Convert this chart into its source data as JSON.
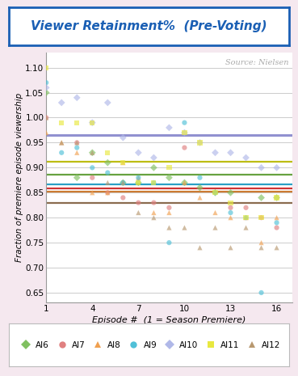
{
  "title": "Viewer Retainment%  (Pre-Voting)",
  "xlabel": "Episode #  (1 = Season Premiere)",
  "ylabel": "Fraction of premiere episode viewership",
  "source_text": "Source: Nielsen",
  "xlim": [
    1,
    17
  ],
  "ylim": [
    0.63,
    1.13
  ],
  "xticks": [
    1,
    4,
    7,
    10,
    13,
    16
  ],
  "yticks": [
    0.65,
    0.7,
    0.75,
    0.8,
    0.85,
    0.9,
    0.95,
    1.0,
    1.05,
    1.1
  ],
  "background_color": "#f5e8ef",
  "plot_bg_color": "#ffffff",
  "title_color": "#1a5fb4",
  "title_box_color": "#1a5fb4",
  "seasons_order": [
    "AI6",
    "AI7",
    "AI8",
    "AI9",
    "AI10",
    "AI11",
    "AI12"
  ],
  "seasons": {
    "AI6": {
      "marker": "D",
      "marker_color": "#80c060",
      "line_color": "#5a9a30"
    },
    "AI7": {
      "marker": "o",
      "marker_color": "#e08080",
      "line_color": "#cc2222"
    },
    "AI8": {
      "marker": "^",
      "marker_color": "#f0a050",
      "line_color": "#c87020"
    },
    "AI9": {
      "marker": "o",
      "marker_color": "#50c0d8",
      "line_color": "#1898c0"
    },
    "AI10": {
      "marker": "D",
      "marker_color": "#b0b8e8",
      "line_color": "#8888cc"
    },
    "AI11": {
      "marker": "s",
      "marker_color": "#e8e840",
      "line_color": "#b8b800"
    },
    "AI12": {
      "marker": "^",
      "marker_color": "#b89870",
      "line_color": "#806040"
    }
  },
  "scatter_data": {
    "AI6": {
      "x": [
        1,
        3,
        4,
        5,
        6,
        7,
        8,
        9,
        10,
        11,
        12,
        13,
        15,
        16
      ],
      "y": [
        1.05,
        0.88,
        0.93,
        0.91,
        0.87,
        0.87,
        0.9,
        0.88,
        0.87,
        0.86,
        0.85,
        0.85,
        0.84,
        0.84
      ]
    },
    "AI7": {
      "x": [
        1,
        3,
        4,
        5,
        6,
        7,
        8,
        9,
        10,
        13,
        14,
        15,
        16
      ],
      "y": [
        1.0,
        0.95,
        0.88,
        0.85,
        0.84,
        0.83,
        0.83,
        0.82,
        0.94,
        0.82,
        0.82,
        0.8,
        0.78
      ]
    },
    "AI8": {
      "x": [
        1,
        2,
        3,
        4,
        5,
        6,
        7,
        8,
        9,
        10,
        11,
        12,
        13,
        14,
        15,
        16
      ],
      "y": [
        0.97,
        0.95,
        0.93,
        0.85,
        0.85,
        0.91,
        0.88,
        0.81,
        0.81,
        0.87,
        0.84,
        0.81,
        0.8,
        0.8,
        0.75,
        0.8
      ]
    },
    "AI9": {
      "x": [
        1,
        2,
        3,
        4,
        5,
        6,
        7,
        8,
        9,
        10,
        11,
        12,
        13,
        14,
        15,
        16
      ],
      "y": [
        1.07,
        0.93,
        0.94,
        0.9,
        0.89,
        0.87,
        0.88,
        0.87,
        0.75,
        0.99,
        0.88,
        0.85,
        0.81,
        0.8,
        0.65,
        0.79
      ]
    },
    "AI10": {
      "x": [
        1,
        2,
        3,
        4,
        5,
        6,
        7,
        8,
        9,
        10,
        11,
        12,
        13,
        14,
        15,
        16
      ],
      "y": [
        1.06,
        1.03,
        1.04,
        0.99,
        1.03,
        0.96,
        0.93,
        0.92,
        0.98,
        0.97,
        0.95,
        0.93,
        0.93,
        0.92,
        0.9,
        0.9
      ]
    },
    "AI11": {
      "x": [
        1,
        2,
        3,
        4,
        5,
        6,
        7,
        8,
        9,
        10,
        11,
        12,
        13,
        14,
        15,
        16
      ],
      "y": [
        1.1,
        0.99,
        0.99,
        0.99,
        0.93,
        0.91,
        0.87,
        0.87,
        0.9,
        0.97,
        0.95,
        0.85,
        0.83,
        0.8,
        0.8,
        0.84
      ]
    },
    "AI12": {
      "x": [
        1,
        2,
        3,
        4,
        5,
        6,
        7,
        8,
        9,
        10,
        11,
        12,
        13,
        14,
        15,
        16
      ],
      "y": [
        1.0,
        0.95,
        0.95,
        0.93,
        0.87,
        0.87,
        0.81,
        0.8,
        0.78,
        0.78,
        0.74,
        0.78,
        0.74,
        0.78,
        0.74,
        0.74
      ]
    }
  }
}
